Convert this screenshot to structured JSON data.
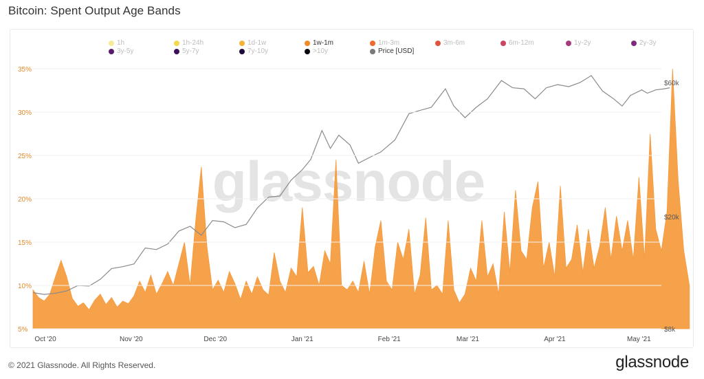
{
  "title": "Bitcoin: Spent Output Age Bands",
  "footer": "© 2021 Glassnode. All Rights Reserved.",
  "brand": "glassnode",
  "watermark": "glassnode",
  "legend": [
    {
      "label": "1h",
      "color": "#f6ec95",
      "active": false
    },
    {
      "label": "1h-24h",
      "color": "#f3d94c",
      "active": false
    },
    {
      "label": "1d-1w",
      "color": "#f4b43c",
      "active": false
    },
    {
      "label": "1w-1m",
      "color": "#f18a27",
      "active": true
    },
    {
      "label": "1m-3m",
      "color": "#ec6c2e",
      "active": false
    },
    {
      "label": "3m-6m",
      "color": "#e0553f",
      "active": false
    },
    {
      "label": "6m-12m",
      "color": "#cd4560",
      "active": false
    },
    {
      "label": "1y-2y",
      "color": "#a8397a",
      "active": false
    },
    {
      "label": "2y-3y",
      "color": "#7e2a7c",
      "active": false
    },
    {
      "label": "3y-5y",
      "color": "#5a1b6e",
      "active": false
    },
    {
      "label": "5y-7y",
      "color": "#3c0f5c",
      "active": false
    },
    {
      "label": "7y-10y",
      "color": "#1e0a3a",
      "active": false
    },
    {
      "label": ">10y",
      "color": "#0a0a12",
      "active": false
    },
    {
      "label": "Price [USD]",
      "color": "#7a7a7a",
      "active": true
    }
  ],
  "chart_data": {
    "type": "area",
    "x_ticks": [
      "Oct '20",
      "Nov '20",
      "Dec '20",
      "Jan '21",
      "Feb '21",
      "Mar '21",
      "Apr '21",
      "May '21"
    ],
    "y_left_ticks": [
      "5%",
      "10%",
      "15%",
      "20%",
      "25%",
      "30%",
      "35%"
    ],
    "y_left_range": [
      5,
      37
    ],
    "y_right_ticks": [
      "$8k",
      "$20k",
      "$60k"
    ],
    "y_right_scale": "log",
    "y_right_range": [
      8000,
      70000
    ],
    "x_range": [
      "2020-09-27",
      "2021-05-09"
    ],
    "series": [
      {
        "name": "1w-1m",
        "color": "#f6a24b",
        "unit": "percent",
        "points": [
          [
            "2020-09-27",
            9.5
          ],
          [
            "2020-09-29",
            8.6
          ],
          [
            "2020-10-01",
            8.2
          ],
          [
            "2020-10-03",
            9.0
          ],
          [
            "2020-10-05",
            11.0
          ],
          [
            "2020-10-07",
            12.9
          ],
          [
            "2020-10-09",
            11.0
          ],
          [
            "2020-10-11",
            8.5
          ],
          [
            "2020-10-13",
            7.6
          ],
          [
            "2020-10-15",
            8.0
          ],
          [
            "2020-10-17",
            7.2
          ],
          [
            "2020-10-19",
            8.3
          ],
          [
            "2020-10-21",
            9.0
          ],
          [
            "2020-10-23",
            7.8
          ],
          [
            "2020-10-25",
            8.6
          ],
          [
            "2020-10-27",
            7.5
          ],
          [
            "2020-10-29",
            8.2
          ],
          [
            "2020-10-31",
            7.9
          ],
          [
            "2020-11-02",
            8.8
          ],
          [
            "2020-11-04",
            10.5
          ],
          [
            "2020-11-06",
            9.2
          ],
          [
            "2020-11-08",
            11.2
          ],
          [
            "2020-11-10",
            9.0
          ],
          [
            "2020-11-12",
            10.2
          ],
          [
            "2020-11-14",
            11.6
          ],
          [
            "2020-11-16",
            10.0
          ],
          [
            "2020-11-18",
            12.5
          ],
          [
            "2020-11-20",
            15.0
          ],
          [
            "2020-11-22",
            10.0
          ],
          [
            "2020-11-24",
            17.5
          ],
          [
            "2020-11-26",
            23.7
          ],
          [
            "2020-11-28",
            14.5
          ],
          [
            "2020-11-30",
            9.5
          ],
          [
            "2020-12-02",
            10.6
          ],
          [
            "2020-12-04",
            9.2
          ],
          [
            "2020-12-06",
            11.6
          ],
          [
            "2020-12-08",
            10.2
          ],
          [
            "2020-12-10",
            8.4
          ],
          [
            "2020-12-12",
            10.5
          ],
          [
            "2020-12-14",
            9.0
          ],
          [
            "2020-12-16",
            11.0
          ],
          [
            "2020-12-18",
            9.5
          ],
          [
            "2020-12-20",
            8.9
          ],
          [
            "2020-12-22",
            13.8
          ],
          [
            "2020-12-24",
            10.5
          ],
          [
            "2020-12-26",
            9.2
          ],
          [
            "2020-12-28",
            12.0
          ],
          [
            "2020-12-30",
            11.0
          ],
          [
            "2021-01-01",
            19.0
          ],
          [
            "2021-01-03",
            11.5
          ],
          [
            "2021-01-05",
            12.2
          ],
          [
            "2021-01-07",
            10.0
          ],
          [
            "2021-01-09",
            14.0
          ],
          [
            "2021-01-11",
            12.5
          ],
          [
            "2021-01-13",
            24.5
          ],
          [
            "2021-01-15",
            10.0
          ],
          [
            "2021-01-17",
            9.5
          ],
          [
            "2021-01-19",
            10.5
          ],
          [
            "2021-01-21",
            9.2
          ],
          [
            "2021-01-23",
            12.8
          ],
          [
            "2021-01-25",
            9.0
          ],
          [
            "2021-01-27",
            14.5
          ],
          [
            "2021-01-29",
            17.5
          ],
          [
            "2021-01-31",
            10.5
          ],
          [
            "2021-02-02",
            9.5
          ],
          [
            "2021-02-04",
            15.0
          ],
          [
            "2021-02-06",
            13.0
          ],
          [
            "2021-02-08",
            16.5
          ],
          [
            "2021-02-10",
            9.0
          ],
          [
            "2021-02-12",
            11.2
          ],
          [
            "2021-02-14",
            17.8
          ],
          [
            "2021-02-16",
            9.5
          ],
          [
            "2021-02-18",
            10.0
          ],
          [
            "2021-02-20",
            9.0
          ],
          [
            "2021-02-22",
            17.5
          ],
          [
            "2021-02-24",
            9.5
          ],
          [
            "2021-02-26",
            8.0
          ],
          [
            "2021-02-28",
            9.0
          ],
          [
            "2021-03-02",
            12.0
          ],
          [
            "2021-03-04",
            10.5
          ],
          [
            "2021-03-06",
            17.5
          ],
          [
            "2021-03-08",
            11.0
          ],
          [
            "2021-03-10",
            12.5
          ],
          [
            "2021-03-12",
            9.0
          ],
          [
            "2021-03-14",
            18.5
          ],
          [
            "2021-03-16",
            11.5
          ],
          [
            "2021-03-18",
            21.0
          ],
          [
            "2021-03-20",
            14.0
          ],
          [
            "2021-03-22",
            13.0
          ],
          [
            "2021-03-24",
            19.0
          ],
          [
            "2021-03-26",
            22.0
          ],
          [
            "2021-03-28",
            12.0
          ],
          [
            "2021-03-30",
            15.0
          ],
          [
            "2021-04-01",
            11.0
          ],
          [
            "2021-04-03",
            21.5
          ],
          [
            "2021-04-05",
            12.0
          ],
          [
            "2021-04-07",
            13.0
          ],
          [
            "2021-04-09",
            17.0
          ],
          [
            "2021-04-11",
            11.5
          ],
          [
            "2021-04-13",
            16.5
          ],
          [
            "2021-04-15",
            12.0
          ],
          [
            "2021-04-17",
            14.5
          ],
          [
            "2021-04-19",
            19.0
          ],
          [
            "2021-04-21",
            13.0
          ],
          [
            "2021-04-23",
            18.0
          ],
          [
            "2021-04-25",
            14.0
          ],
          [
            "2021-04-27",
            17.5
          ],
          [
            "2021-04-29",
            13.0
          ],
          [
            "2021-05-01",
            22.5
          ],
          [
            "2021-05-03",
            13.0
          ],
          [
            "2021-05-05",
            27.5
          ],
          [
            "2021-05-07",
            16.5
          ],
          [
            "2021-05-09",
            14.0
          ],
          [
            "2021-05-11",
            18.5
          ],
          [
            "2021-05-13",
            35.0
          ],
          [
            "2021-05-15",
            22.0
          ],
          [
            "2021-05-17",
            14.0
          ],
          [
            "2021-05-19",
            10.0
          ]
        ]
      },
      {
        "name": "Price [USD]",
        "color": "#8a8a8a",
        "unit": "usd",
        "points": [
          [
            "2020-09-27",
            10750
          ],
          [
            "2020-10-01",
            10600
          ],
          [
            "2020-10-05",
            10700
          ],
          [
            "2020-10-09",
            10900
          ],
          [
            "2020-10-13",
            11400
          ],
          [
            "2020-10-17",
            11350
          ],
          [
            "2020-10-21",
            12000
          ],
          [
            "2020-10-25",
            13100
          ],
          [
            "2020-10-29",
            13300
          ],
          [
            "2020-11-02",
            13600
          ],
          [
            "2020-11-06",
            15500
          ],
          [
            "2020-11-10",
            15300
          ],
          [
            "2020-11-14",
            16000
          ],
          [
            "2020-11-18",
            17800
          ],
          [
            "2020-11-22",
            18500
          ],
          [
            "2020-11-26",
            17200
          ],
          [
            "2020-11-30",
            19400
          ],
          [
            "2020-12-04",
            19200
          ],
          [
            "2020-12-08",
            18300
          ],
          [
            "2020-12-12",
            18800
          ],
          [
            "2020-12-16",
            21500
          ],
          [
            "2020-12-20",
            23500
          ],
          [
            "2020-12-24",
            23700
          ],
          [
            "2020-12-28",
            27000
          ],
          [
            "2021-01-01",
            29400
          ],
          [
            "2021-01-04",
            32000
          ],
          [
            "2021-01-08",
            40500
          ],
          [
            "2021-01-11",
            35000
          ],
          [
            "2021-01-14",
            39000
          ],
          [
            "2021-01-18",
            36000
          ],
          [
            "2021-01-21",
            31000
          ],
          [
            "2021-01-25",
            32500
          ],
          [
            "2021-01-29",
            34000
          ],
          [
            "2021-02-03",
            37500
          ],
          [
            "2021-02-08",
            46500
          ],
          [
            "2021-02-12",
            47800
          ],
          [
            "2021-02-16",
            49000
          ],
          [
            "2021-02-21",
            57000
          ],
          [
            "2021-02-24",
            49500
          ],
          [
            "2021-02-28",
            45000
          ],
          [
            "2021-03-04",
            49000
          ],
          [
            "2021-03-08",
            52500
          ],
          [
            "2021-03-13",
            61000
          ],
          [
            "2021-03-17",
            57500
          ],
          [
            "2021-03-21",
            57000
          ],
          [
            "2021-03-25",
            52500
          ],
          [
            "2021-03-29",
            57500
          ],
          [
            "2021-04-02",
            59000
          ],
          [
            "2021-04-06",
            58000
          ],
          [
            "2021-04-10",
            60000
          ],
          [
            "2021-04-14",
            63500
          ],
          [
            "2021-04-18",
            56000
          ],
          [
            "2021-04-22",
            52500
          ],
          [
            "2021-04-25",
            49500
          ],
          [
            "2021-04-28",
            54000
          ],
          [
            "2021-05-02",
            56500
          ],
          [
            "2021-05-04",
            55000
          ],
          [
            "2021-05-07",
            56500
          ],
          [
            "2021-05-10",
            57000
          ],
          [
            "2021-05-12",
            57500
          ]
        ]
      }
    ]
  }
}
